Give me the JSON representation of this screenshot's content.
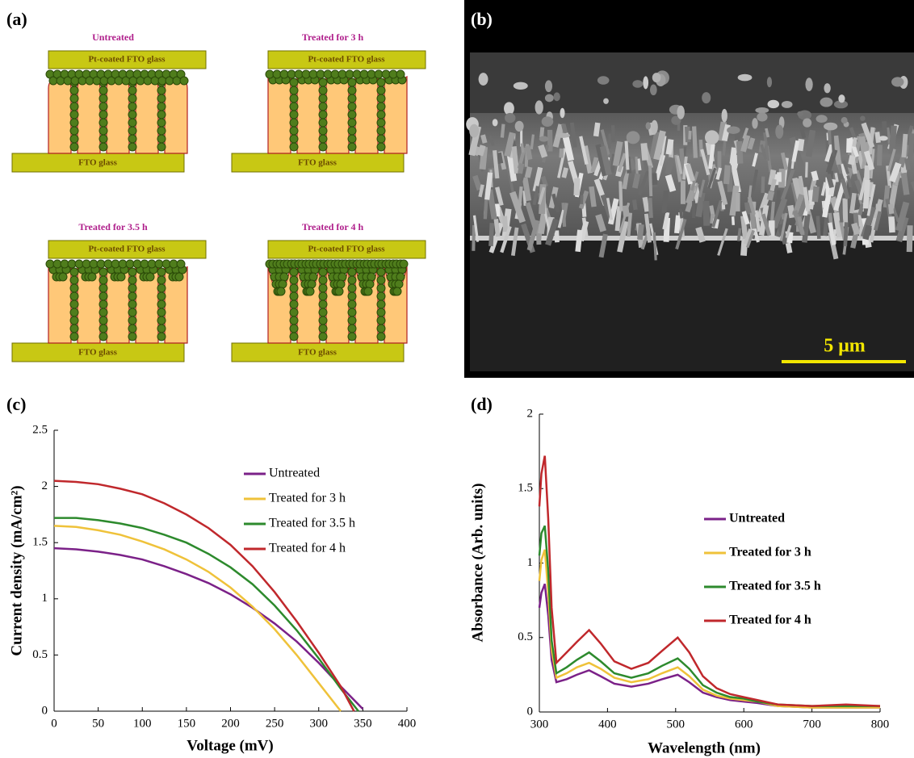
{
  "panel_labels": [
    "(a)",
    "(b)",
    "(c)",
    "(d)"
  ],
  "diagram": {
    "states": [
      {
        "title": "Untreated",
        "top": "Pt-coated FTO glass",
        "bottom": "FTO glass"
      },
      {
        "title": "Treated for 3 h",
        "top": "Pt-coated FTO glass",
        "bottom": "FTO glass"
      },
      {
        "title": "Treated for 3.5 h",
        "top": "Pt-coated FTO glass",
        "bottom": "FTO glass"
      },
      {
        "title": "Treated for 4 h",
        "top": "Pt-coated FTO glass",
        "bottom": "FTO glass"
      }
    ]
  },
  "micrograph": {
    "scale_bar": "5 μm"
  },
  "chart_data": [
    {
      "type": "line",
      "xlabel": "Voltage (mV)",
      "ylabel": "Current density (mA/cm²)",
      "xlim": [
        0,
        400
      ],
      "ylim": [
        0,
        2.5
      ],
      "xticks": [
        0,
        50,
        100,
        150,
        200,
        250,
        300,
        350,
        400
      ],
      "yticks": [
        0,
        0.5,
        1,
        1.5,
        2,
        2.5
      ],
      "legend": "upper right",
      "legend_bold": false,
      "series": [
        {
          "name": "Untreated",
          "color": "#7b2188",
          "x": [
            0,
            25,
            50,
            75,
            100,
            125,
            150,
            175,
            200,
            225,
            250,
            275,
            300,
            325,
            350
          ],
          "values": [
            1.45,
            1.44,
            1.42,
            1.39,
            1.35,
            1.29,
            1.22,
            1.14,
            1.04,
            0.92,
            0.78,
            0.62,
            0.43,
            0.22,
            0.02
          ]
        },
        {
          "name": "Treated for 3 h",
          "color": "#efc23a",
          "x": [
            0,
            25,
            50,
            75,
            100,
            125,
            150,
            175,
            200,
            225,
            250,
            275,
            300,
            325
          ],
          "values": [
            1.65,
            1.64,
            1.61,
            1.57,
            1.51,
            1.44,
            1.35,
            1.24,
            1.1,
            0.93,
            0.73,
            0.5,
            0.25,
            0
          ]
        },
        {
          "name": "Treated for 3.5 h",
          "color": "#2d8a2d",
          "x": [
            0,
            25,
            50,
            75,
            100,
            125,
            150,
            175,
            200,
            225,
            250,
            275,
            300,
            325,
            345
          ],
          "values": [
            1.72,
            1.72,
            1.7,
            1.67,
            1.63,
            1.57,
            1.5,
            1.4,
            1.28,
            1.13,
            0.94,
            0.72,
            0.47,
            0.2,
            0
          ]
        },
        {
          "name": "Treated for 4 h",
          "color": "#c0282c",
          "x": [
            0,
            25,
            50,
            75,
            100,
            125,
            150,
            175,
            200,
            225,
            250,
            275,
            300,
            325,
            340
          ],
          "values": [
            2.05,
            2.04,
            2.02,
            1.98,
            1.93,
            1.85,
            1.75,
            1.63,
            1.48,
            1.29,
            1.06,
            0.8,
            0.52,
            0.22,
            0
          ]
        }
      ]
    },
    {
      "type": "line",
      "xlabel": "Wavelength (nm)",
      "ylabel": "Absorbance (Arb. units)",
      "xlim": [
        300,
        800
      ],
      "ylim": [
        0,
        2
      ],
      "xticks": [
        300,
        400,
        500,
        600,
        700,
        800
      ],
      "yticks": [
        0,
        0.5,
        1,
        1.5,
        2
      ],
      "legend": "center right",
      "legend_bold": true,
      "series": [
        {
          "name": "Untreated",
          "color": "#7b2188",
          "x": [
            300,
            303,
            308,
            313,
            318,
            325,
            340,
            355,
            373,
            390,
            410,
            435,
            460,
            480,
            503,
            520,
            540,
            560,
            580,
            600,
            620,
            650,
            700,
            750,
            800
          ],
          "values": [
            0.7,
            0.8,
            0.86,
            0.65,
            0.35,
            0.2,
            0.22,
            0.25,
            0.28,
            0.24,
            0.19,
            0.17,
            0.19,
            0.22,
            0.25,
            0.2,
            0.13,
            0.1,
            0.08,
            0.07,
            0.06,
            0.04,
            0.03,
            0.03,
            0.03
          ]
        },
        {
          "name": "Treated for 3 h",
          "color": "#efc23a",
          "x": [
            300,
            303,
            308,
            313,
            318,
            325,
            340,
            355,
            373,
            390,
            410,
            435,
            460,
            480,
            503,
            520,
            540,
            560,
            580,
            600,
            620,
            650,
            700,
            750,
            800
          ],
          "values": [
            0.88,
            1.02,
            1.09,
            0.8,
            0.42,
            0.23,
            0.26,
            0.3,
            0.33,
            0.29,
            0.23,
            0.2,
            0.22,
            0.26,
            0.3,
            0.24,
            0.15,
            0.11,
            0.09,
            0.08,
            0.07,
            0.04,
            0.03,
            0.03,
            0.03
          ]
        },
        {
          "name": "Treated for 3.5 h",
          "color": "#2d8a2d",
          "x": [
            300,
            303,
            308,
            313,
            318,
            325,
            340,
            355,
            373,
            390,
            410,
            435,
            460,
            480,
            503,
            520,
            540,
            560,
            580,
            600,
            620,
            650,
            700,
            750,
            800
          ],
          "values": [
            1.05,
            1.2,
            1.25,
            0.95,
            0.48,
            0.26,
            0.3,
            0.35,
            0.4,
            0.34,
            0.26,
            0.23,
            0.26,
            0.31,
            0.36,
            0.29,
            0.18,
            0.13,
            0.1,
            0.09,
            0.07,
            0.05,
            0.04,
            0.04,
            0.04
          ]
        },
        {
          "name": "Treated for 4 h",
          "color": "#c0282c",
          "x": [
            300,
            303,
            308,
            313,
            318,
            325,
            340,
            355,
            373,
            390,
            410,
            435,
            460,
            480,
            503,
            520,
            540,
            560,
            580,
            600,
            620,
            650,
            700,
            750,
            800
          ],
          "values": [
            1.38,
            1.6,
            1.72,
            1.3,
            0.7,
            0.33,
            0.4,
            0.47,
            0.55,
            0.46,
            0.34,
            0.29,
            0.33,
            0.41,
            0.5,
            0.4,
            0.24,
            0.16,
            0.12,
            0.1,
            0.08,
            0.05,
            0.04,
            0.05,
            0.04
          ]
        }
      ]
    }
  ]
}
